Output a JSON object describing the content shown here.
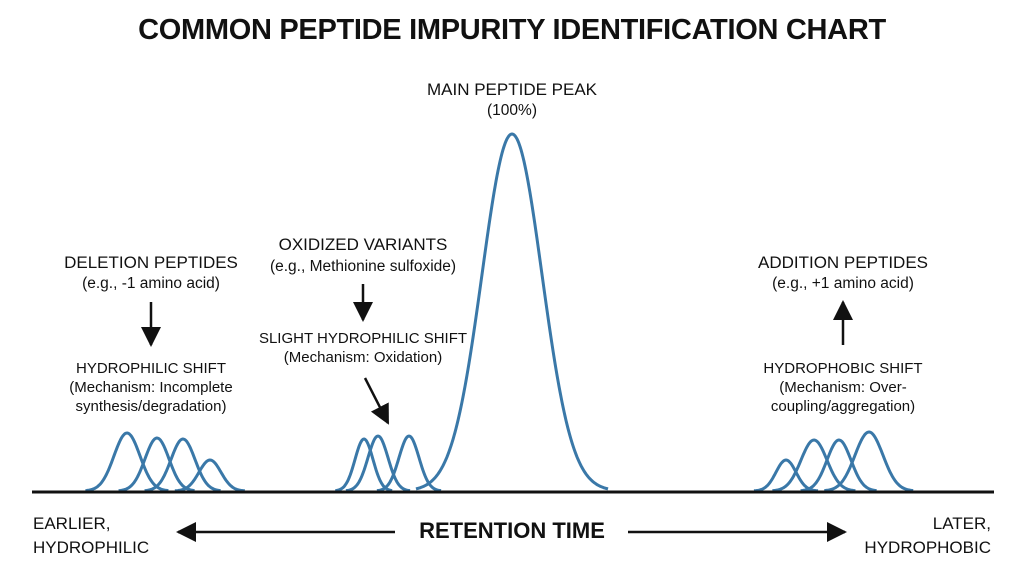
{
  "title": "COMMON PEPTIDE IMPURITY IDENTIFICATION CHART",
  "main_peak": {
    "label": "MAIN PEPTIDE PEAK",
    "value": "(100%)"
  },
  "deletion": {
    "label": "DELETION PEPTIDES",
    "example": "(e.g., -1 amino acid)",
    "shift": "HYDROPHILIC SHIFT",
    "mechanism_1": "(Mechanism: Incomplete",
    "mechanism_2": "synthesis/degradation)"
  },
  "oxidized": {
    "label": "OXIDIZED VARIANTS",
    "example": "(e.g., Methionine sulfoxide)",
    "shift": "SLIGHT HYDROPHILIC SHIFT",
    "mechanism": "(Mechanism: Oxidation)"
  },
  "addition": {
    "label": "ADDITION PEPTIDES",
    "example": "(e.g., +1 amino acid)",
    "shift": "HYDROPHOBIC SHIFT",
    "mechanism_1": "(Mechanism: Over-",
    "mechanism_2": "coupling/aggregation)"
  },
  "axis": {
    "left_1": "EARLIER,",
    "left_2": "HYDROPHILIC",
    "center": "RETENTION TIME",
    "right_1": "LATER,",
    "right_2": "HYDROPHOBIC"
  },
  "colors": {
    "peak": "#3a78a8",
    "text": "#111111"
  }
}
